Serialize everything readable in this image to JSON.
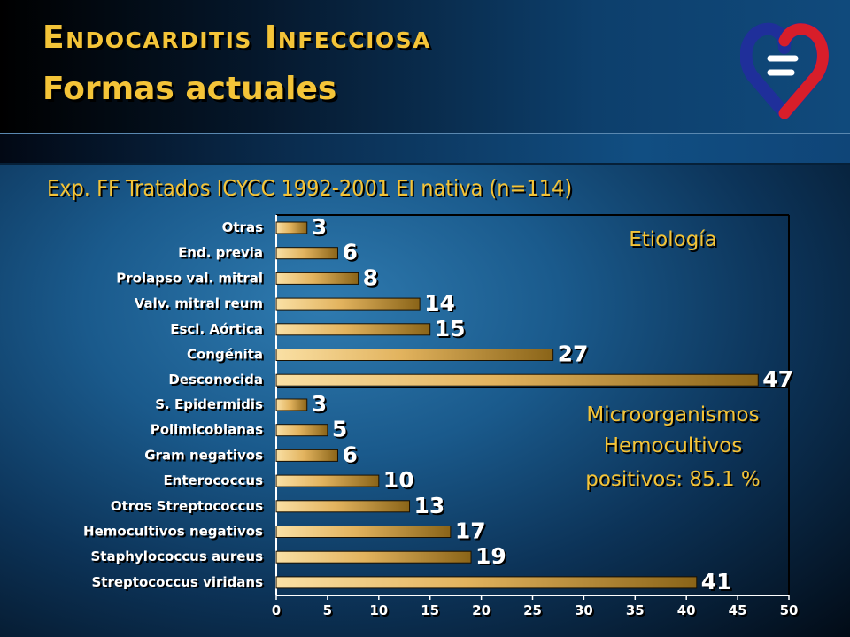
{
  "header": {
    "title": "Endocarditis Infecciosa",
    "subtitle": "Formas actuales"
  },
  "chart_title": "Exp. FF Tratados ICYCC 1992-2001 EI nativa (n=114)",
  "colors": {
    "accent": "#f4c438",
    "bar_light": "#f8d898",
    "bar_dark": "#8a6418"
  },
  "chart_data": [
    {
      "type": "bar",
      "orientation": "horizontal",
      "annotation": [
        "Etiología"
      ],
      "categories": [
        "Otras",
        "End. previa",
        "Prolapso val. mitral",
        "Valv. mitral reum",
        "Escl. Aórtica",
        "Congénita",
        "Desconocida"
      ],
      "values": [
        3,
        6,
        8,
        14,
        15,
        27,
        47
      ],
      "xlim": [
        0,
        50
      ]
    },
    {
      "type": "bar",
      "orientation": "horizontal",
      "annotation": [
        "Microorganismos",
        "Hemocultivos",
        "positivos: 85.1 %"
      ],
      "categories": [
        "S. Epidermidis",
        "Polimicobianas",
        "Gram negativos",
        "Enterococcus",
        "Otros Streptococcus",
        "Hemocultivos negativos",
        "Staphylococcus aureus",
        "Streptococcus viridans"
      ],
      "values": [
        3,
        5,
        6,
        10,
        13,
        17,
        19,
        41
      ],
      "xlim": [
        0,
        50
      ]
    }
  ],
  "x_ticks": [
    "0",
    "5",
    "10",
    "15",
    "20",
    "25",
    "30",
    "35",
    "40",
    "45",
    "50"
  ]
}
